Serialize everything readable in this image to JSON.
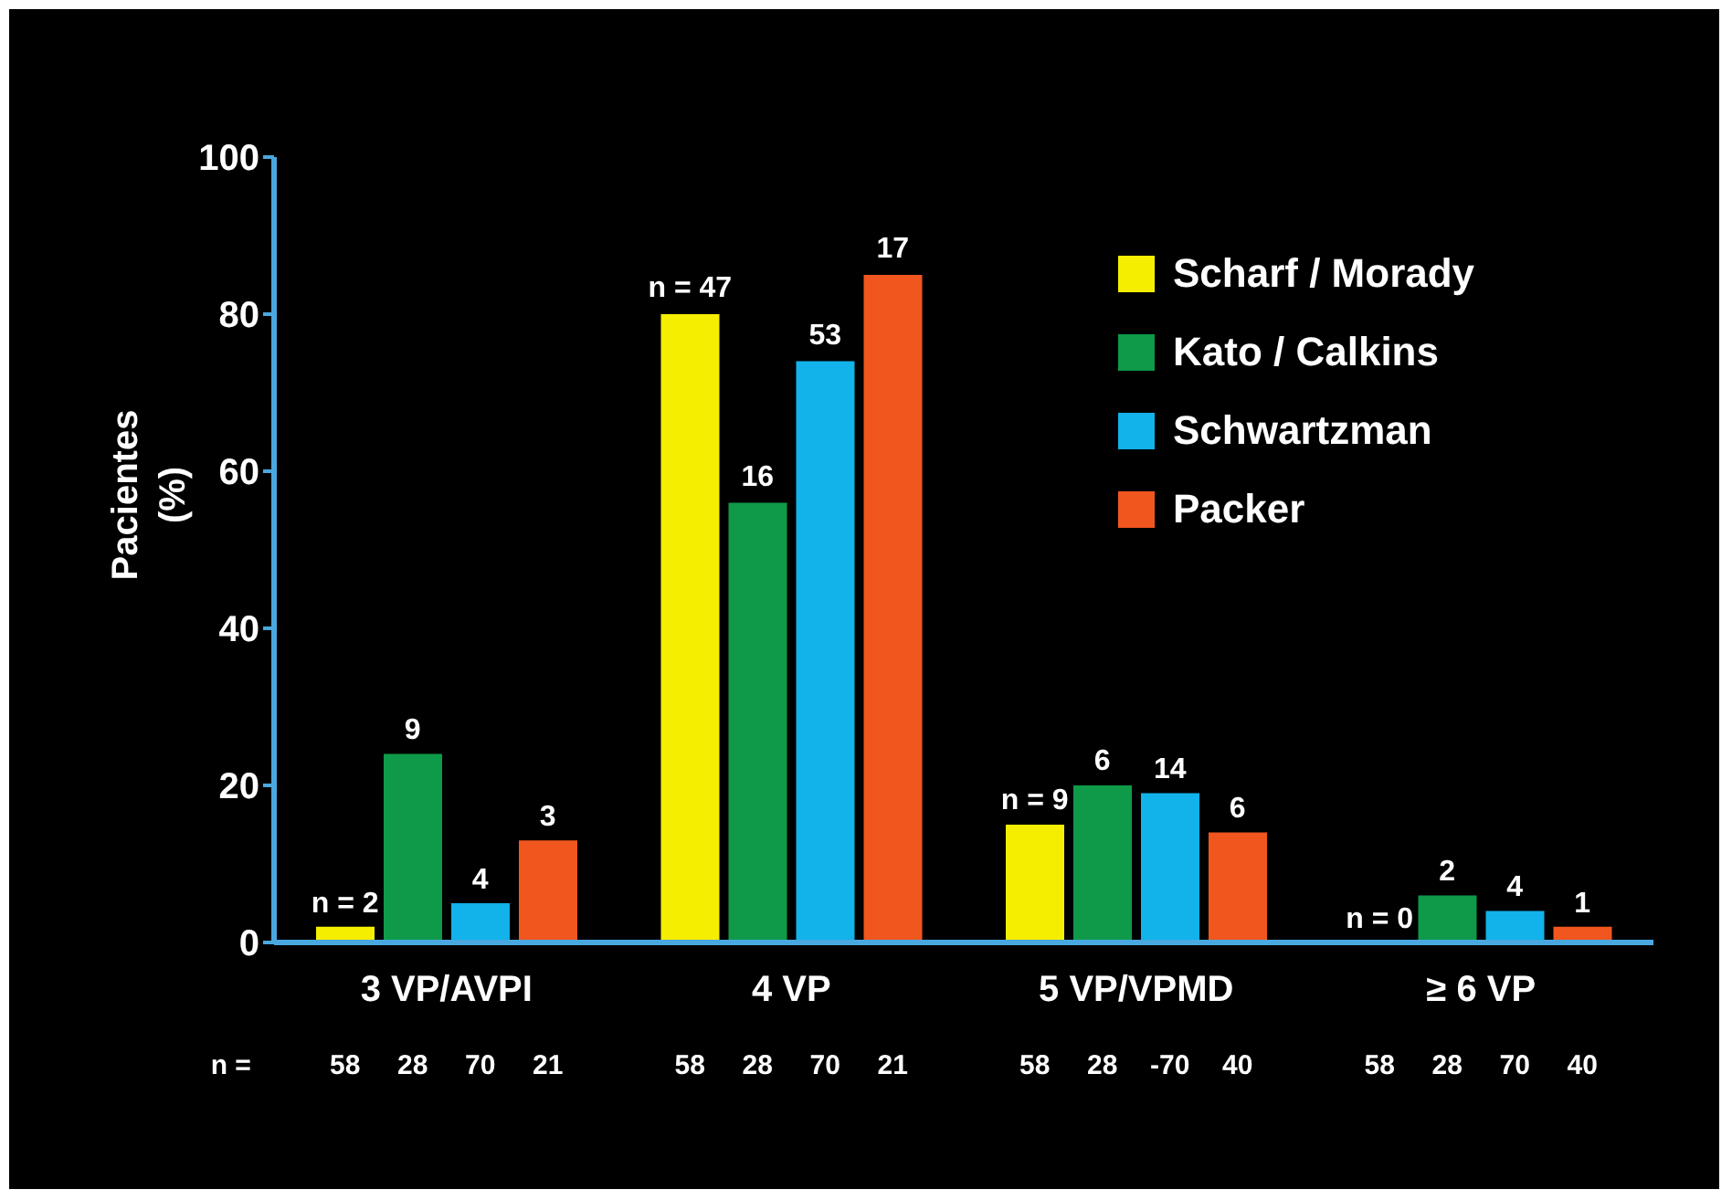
{
  "chart_data": {
    "type": "bar",
    "ylabel": "Pacientes\n(%)",
    "categories": [
      "3 VP/AVPI",
      "4 VP",
      "5 VP/VPMD",
      "≥ 6 VP"
    ],
    "series": [
      {
        "name": "Scharf / Morady",
        "color": "#f5ee00",
        "values": [
          2,
          80,
          15,
          0
        ]
      },
      {
        "name": "Kato / Calkins",
        "color": "#0e9a48",
        "values": [
          24,
          56,
          20,
          6
        ]
      },
      {
        "name": "Schwartzman",
        "color": "#12b2ea",
        "values": [
          5,
          74,
          19,
          4
        ]
      },
      {
        "name": "Packer",
        "color": "#f0561e",
        "values": [
          13,
          85,
          14,
          2
        ]
      }
    ],
    "ylim": [
      0,
      100
    ],
    "yticks": [
      0,
      20,
      40,
      60,
      80,
      100
    ],
    "grid": false,
    "legend": "top right",
    "annotations": [
      "n = 2",
      "9",
      "4",
      "3",
      "n = 47",
      "16",
      "53",
      "17",
      "n = 9",
      "6",
      "14",
      "6",
      "n = 0",
      "2",
      "4",
      "1",
      "n =",
      "58",
      "28",
      "70",
      "21",
      "58",
      "28",
      "70",
      "21",
      "58",
      "28",
      "-70",
      "40",
      "58",
      "28",
      "70",
      "40"
    ]
  }
}
